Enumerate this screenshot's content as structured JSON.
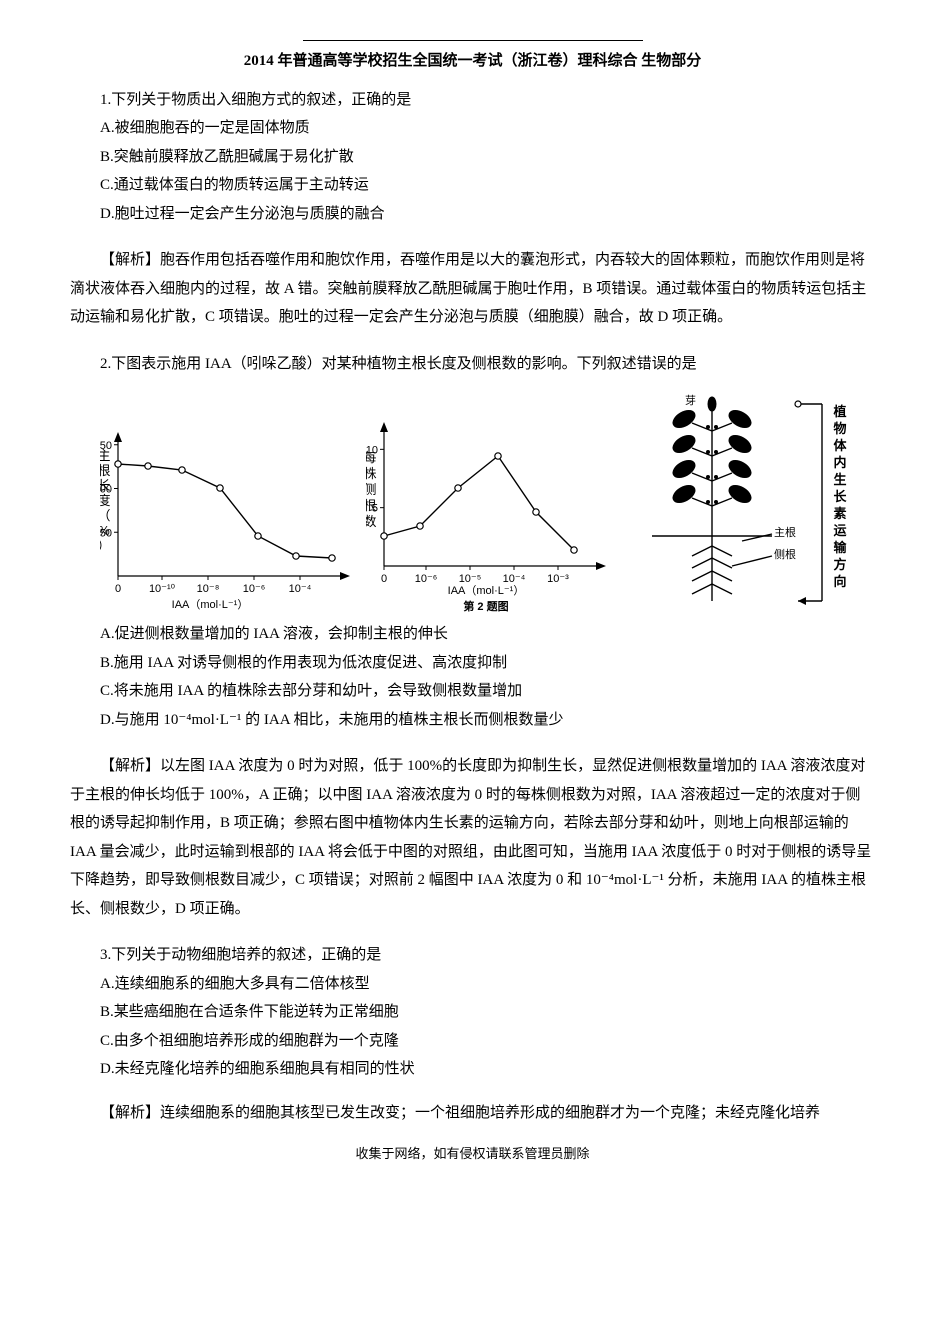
{
  "title": "2014 年普通高等学校招生全国统一考试（浙江卷）理科综合  生物部分",
  "q1": {
    "stem": "1.下列关于物质出入细胞方式的叙述，正确的是",
    "A": "A.被细胞胞吞的一定是固体物质",
    "B": "B.突触前膜释放乙酰胆碱属于易化扩散",
    "C": "C.通过载体蛋白的物质转运属于主动转运",
    "D": "D.胞吐过程一定会产生分泌泡与质膜的融合"
  },
  "a1": "【解析】胞吞作用包括吞噬作用和胞饮作用，吞噬作用是以大的囊泡形式，内吞较大的固体颗粒，而胞饮作用则是将滴状液体吞入细胞内的过程，故 A 错。突触前膜释放乙酰胆碱属于胞吐作用，B 项错误。通过载体蛋白的物质转运包括主动运输和易化扩散，C 项错误。胞吐的过程一定会产生分泌泡与质膜（细胞膜）融合，故 D 项正确。",
  "q2": {
    "stem": "2.下图表示施用 IAA（吲哚乙酸）对某种植物主根长度及侧根数的影响。下列叙述错误的是",
    "A": "A.促进侧根数量增加的 IAA 溶液，会抑制主根的伸长",
    "B": "B.施用 IAA 对诱导侧根的作用表现为低浓度促进、高浓度抑制",
    "C": "C.将未施用 IAA 的植株除去部分芽和幼叶，会导致侧根数量增加",
    "D": "D.与施用 10⁻⁴mol·L⁻¹ 的 IAA 相比，未施用的植株主根长而侧根数量少"
  },
  "chart1": {
    "type": "line",
    "x_ticks": [
      "0",
      "10⁻¹⁰",
      "10⁻⁸",
      "10⁻⁶",
      "10⁻⁴"
    ],
    "y_ticks": [
      50,
      100,
      150
    ],
    "y_label_vert": "主根长度（%）",
    "x_label": "IAA（mol·L⁻¹）",
    "points_x": [
      18,
      48,
      82,
      120,
      158,
      196,
      232
    ],
    "points_y": [
      38,
      40,
      44,
      62,
      110,
      130,
      132
    ],
    "line_color": "#000000",
    "bg": "#ffffff"
  },
  "chart2": {
    "type": "line",
    "x_ticks": [
      "0",
      "10⁻⁶",
      "10⁻⁵",
      "10⁻⁴",
      "10⁻³"
    ],
    "y_ticks": [
      5,
      10
    ],
    "y_label_vert": "每株侧根数",
    "x_label": "IAA（mol·L⁻¹）",
    "caption_below": "第 2 题图",
    "points_x": [
      18,
      54,
      92,
      132,
      170,
      208
    ],
    "points_y": [
      120,
      110,
      72,
      40,
      96,
      134
    ],
    "line_color": "#000000",
    "bg": "#ffffff"
  },
  "plant": {
    "label_bud": "芽",
    "label_main_root": "主根",
    "label_side_root": "侧根",
    "side_label_vert": "植物体内生长素运输方向",
    "stroke": "#000000"
  },
  "a2": "【解析】以左图 IAA 浓度为 0 时为对照，低于 100%的长度即为抑制生长，显然促进侧根数量增加的 IAA 溶液浓度对于主根的伸长均低于 100%，A 正确；以中图 IAA 溶液浓度为 0 时的每株侧根数为对照，IAA 溶液超过一定的浓度对于侧根的诱导起抑制作用，B 项正确；参照右图中植物体内生长素的运输方向，若除去部分芽和幼叶，则地上向根部运输的 IAA 量会减少，此时运输到根部的 IAA 将会低于中图的对照组，由此图可知，当施用 IAA 浓度低于 0 时对于侧根的诱导呈下降趋势，即导致侧根数目减少，C 项错误；对照前 2 幅图中 IAA 浓度为 0 和 10⁻⁴mol·L⁻¹ 分析，未施用 IAA 的植株主根长、侧根数少，D 项正确。",
  "q3": {
    "stem": "3.下列关于动物细胞培养的叙述，正确的是",
    "A": "A.连续细胞系的细胞大多具有二倍体核型",
    "B": "B.某些癌细胞在合适条件下能逆转为正常细胞",
    "C": "C.由多个祖细胞培养形成的细胞群为一个克隆",
    "D": "D.未经克隆化培养的细胞系细胞具有相同的性状"
  },
  "a3": "【解析】连续细胞系的细胞其核型已发生改变；一个祖细胞培养形成的细胞群才为一个克隆；未经克隆化培养",
  "footer": "收集于网络，如有侵权请联系管理员删除"
}
